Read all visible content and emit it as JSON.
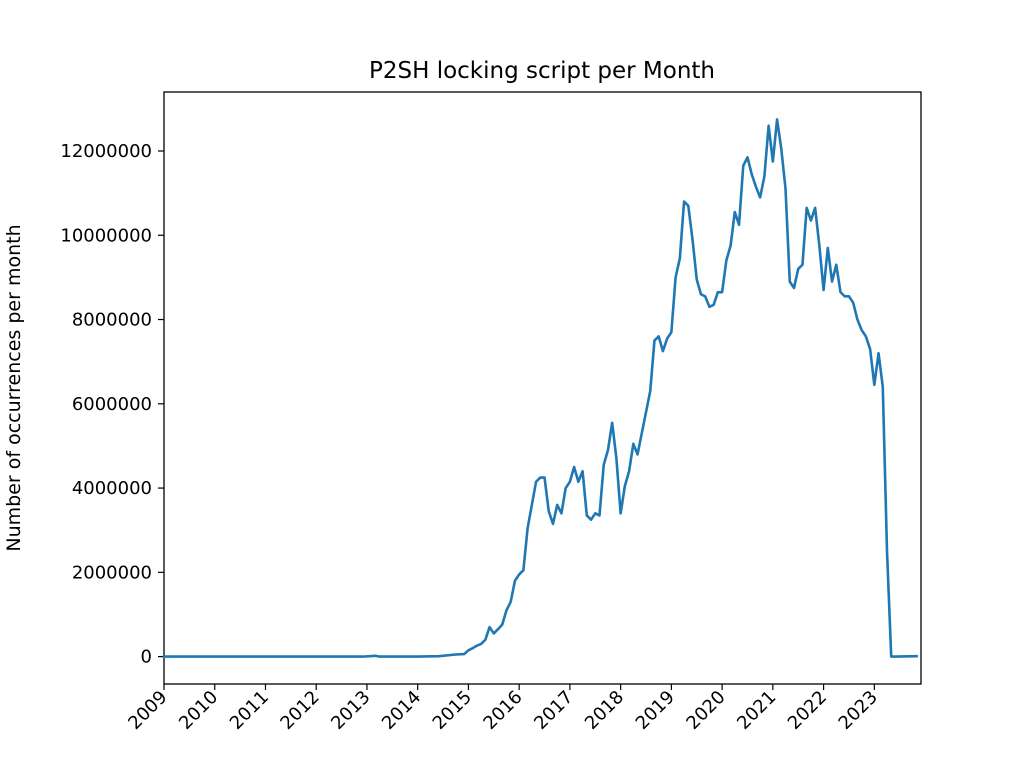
{
  "chart_data": {
    "type": "line",
    "title": "P2SH locking script per Month",
    "xlabel": "",
    "ylabel": "Number of occurrences per month",
    "xlim": [
      2009.0,
      2023.92
    ],
    "ylim": [
      -650000,
      13400000
    ],
    "x_ticks": [
      "2009",
      "2010",
      "2011",
      "2012",
      "2013",
      "2014",
      "2015",
      "2016",
      "2017",
      "2018",
      "2019",
      "2020",
      "2021",
      "2022",
      "2023"
    ],
    "y_ticks": [
      "0",
      "2000000",
      "4000000",
      "6000000",
      "8000000",
      "10000000",
      "12000000"
    ],
    "grid": false,
    "legend": "none",
    "series": [
      {
        "color": "#1f77b4",
        "points": [
          [
            "2009-01",
            0
          ],
          [
            "2012-12",
            0
          ],
          [
            "2013-03",
            20000
          ],
          [
            "2013-04",
            0
          ],
          [
            "2014-01",
            0
          ],
          [
            "2014-06",
            10000
          ],
          [
            "2014-10",
            50000
          ],
          [
            "2014-12",
            60000
          ],
          [
            "2015-01",
            150000
          ],
          [
            "2015-02",
            200000
          ],
          [
            "2015-03",
            260000
          ],
          [
            "2015-04",
            300000
          ],
          [
            "2015-05",
            400000
          ],
          [
            "2015-06",
            700000
          ],
          [
            "2015-07",
            550000
          ],
          [
            "2015-08",
            650000
          ],
          [
            "2015-09",
            760000
          ],
          [
            "2015-10",
            1100000
          ],
          [
            "2015-11",
            1300000
          ],
          [
            "2015-12",
            1800000
          ],
          [
            "2016-01",
            1950000
          ],
          [
            "2016-02",
            2050000
          ],
          [
            "2016-03",
            3050000
          ],
          [
            "2016-04",
            3600000
          ],
          [
            "2016-05",
            4150000
          ],
          [
            "2016-06",
            4250000
          ],
          [
            "2016-07",
            4250000
          ],
          [
            "2016-08",
            3450000
          ],
          [
            "2016-09",
            3150000
          ],
          [
            "2016-10",
            3600000
          ],
          [
            "2016-11",
            3400000
          ],
          [
            "2016-12",
            4000000
          ],
          [
            "2017-01",
            4150000
          ],
          [
            "2017-02",
            4500000
          ],
          [
            "2017-03",
            4150000
          ],
          [
            "2017-04",
            4400000
          ],
          [
            "2017-05",
            3350000
          ],
          [
            "2017-06",
            3250000
          ],
          [
            "2017-07",
            3400000
          ],
          [
            "2017-08",
            3350000
          ],
          [
            "2017-09",
            4550000
          ],
          [
            "2017-10",
            4900000
          ],
          [
            "2017-11",
            5550000
          ],
          [
            "2017-12",
            4700000
          ],
          [
            "2018-01",
            3400000
          ],
          [
            "2018-02",
            4050000
          ],
          [
            "2018-03",
            4400000
          ],
          [
            "2018-04",
            5050000
          ],
          [
            "2018-05",
            4800000
          ],
          [
            "2018-06",
            5300000
          ],
          [
            "2018-07",
            5800000
          ],
          [
            "2018-08",
            6300000
          ],
          [
            "2018-09",
            7500000
          ],
          [
            "2018-10",
            7600000
          ],
          [
            "2018-11",
            7250000
          ],
          [
            "2018-12",
            7550000
          ],
          [
            "2019-01",
            7700000
          ],
          [
            "2019-02",
            9000000
          ],
          [
            "2019-03",
            9450000
          ],
          [
            "2019-04",
            10800000
          ],
          [
            "2019-05",
            10700000
          ],
          [
            "2019-06",
            9900000
          ],
          [
            "2019-07",
            8950000
          ],
          [
            "2019-08",
            8600000
          ],
          [
            "2019-09",
            8550000
          ],
          [
            "2019-10",
            8300000
          ],
          [
            "2019-11",
            8350000
          ],
          [
            "2019-12",
            8650000
          ],
          [
            "2020-01",
            8650000
          ],
          [
            "2020-02",
            9400000
          ],
          [
            "2020-03",
            9750000
          ],
          [
            "2020-04",
            10550000
          ],
          [
            "2020-05",
            10250000
          ],
          [
            "2020-06",
            11650000
          ],
          [
            "2020-07",
            11850000
          ],
          [
            "2020-08",
            11450000
          ],
          [
            "2020-09",
            11150000
          ],
          [
            "2020-10",
            10900000
          ],
          [
            "2020-11",
            11400000
          ],
          [
            "2020-12",
            12600000
          ],
          [
            "2021-01",
            11750000
          ],
          [
            "2021-02",
            12750000
          ],
          [
            "2021-03",
            12050000
          ],
          [
            "2021-04",
            11100000
          ],
          [
            "2021-05",
            8900000
          ],
          [
            "2021-06",
            8750000
          ],
          [
            "2021-07",
            9200000
          ],
          [
            "2021-08",
            9300000
          ],
          [
            "2021-09",
            10650000
          ],
          [
            "2021-10",
            10350000
          ],
          [
            "2021-11",
            10650000
          ],
          [
            "2021-12",
            9750000
          ],
          [
            "2022-01",
            8700000
          ],
          [
            "2022-02",
            9700000
          ],
          [
            "2022-03",
            8900000
          ],
          [
            "2022-04",
            9300000
          ],
          [
            "2022-05",
            8650000
          ],
          [
            "2022-06",
            8550000
          ],
          [
            "2022-07",
            8550000
          ],
          [
            "2022-08",
            8400000
          ],
          [
            "2022-09",
            8000000
          ],
          [
            "2022-10",
            7750000
          ],
          [
            "2022-11",
            7600000
          ],
          [
            "2022-12",
            7300000
          ],
          [
            "2023-01",
            6450000
          ],
          [
            "2023-02",
            7200000
          ],
          [
            "2023-03",
            6400000
          ],
          [
            "2023-04",
            2500000
          ],
          [
            "2023-05",
            0
          ],
          [
            "2023-06",
            0
          ],
          [
            "2023-11",
            10000
          ]
        ]
      }
    ]
  }
}
